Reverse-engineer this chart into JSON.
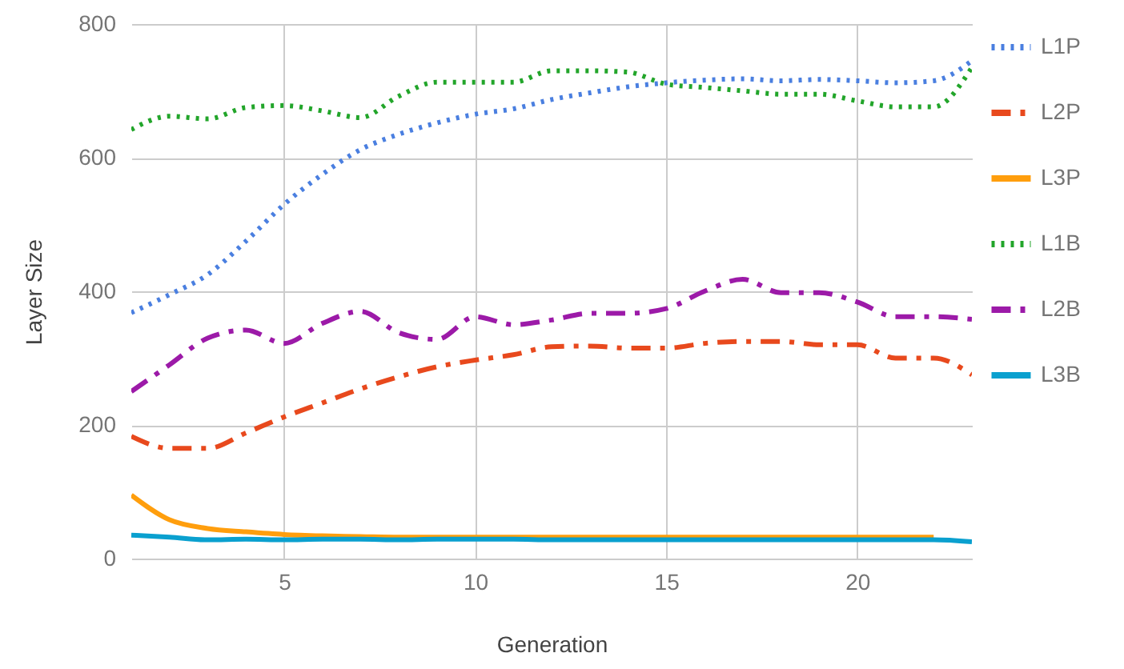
{
  "chart_data": {
    "type": "line",
    "xlabel": "Generation",
    "ylabel": "Layer Size",
    "x": [
      1,
      2,
      3,
      4,
      5,
      6,
      7,
      8,
      9,
      10,
      11,
      12,
      13,
      14,
      15,
      16,
      17,
      18,
      19,
      20,
      21,
      22,
      23
    ],
    "xlim": [
      1,
      23
    ],
    "xticks": [
      5,
      10,
      15,
      20
    ],
    "ylim": [
      0,
      800
    ],
    "yticks": [
      0,
      200,
      400,
      600,
      800
    ],
    "grid": true,
    "legend": "right",
    "series": [
      {
        "name": "L1P",
        "color": "#4a7fe0",
        "line_style": "dotted",
        "values": [
          368,
          395,
          425,
          475,
          530,
          575,
          612,
          635,
          652,
          665,
          673,
          687,
          697,
          706,
          712,
          716,
          718,
          715,
          717,
          715,
          712,
          715,
          745
        ]
      },
      {
        "name": "L2P",
        "color": "#e8491d",
        "line_style": "dashed",
        "values": [
          183,
          165,
          165,
          188,
          212,
          233,
          254,
          272,
          287,
          297,
          305,
          317,
          318,
          315,
          315,
          322,
          325,
          325,
          320,
          320,
          300,
          300,
          275
        ]
      },
      {
        "name": "L3P",
        "color": "#ff9e0d",
        "line_style": "solid",
        "values": [
          95,
          58,
          45,
          40,
          36,
          34,
          33,
          32,
          32,
          32,
          32,
          32,
          32,
          32,
          32,
          32,
          32,
          32,
          32,
          32,
          32,
          32,
          null
        ]
      },
      {
        "name": "L1B",
        "color": "#22a52a",
        "line_style": "dotted",
        "values": [
          642,
          662,
          658,
          675,
          678,
          670,
          660,
          692,
          713,
          713,
          713,
          730,
          730,
          728,
          710,
          705,
          700,
          695,
          695,
          685,
          676,
          676,
          735
        ]
      },
      {
        "name": "L2B",
        "color": "#9c1aa8",
        "line_style": "dashed",
        "values": [
          250,
          290,
          330,
          342,
          322,
          352,
          370,
          338,
          328,
          362,
          350,
          357,
          367,
          367,
          374,
          400,
          418,
          398,
          398,
          384,
          362,
          362,
          358
        ]
      },
      {
        "name": "L3B",
        "color": "#0aa0cf",
        "line_style": "solid",
        "values": [
          35,
          32,
          28,
          29,
          28,
          29,
          29,
          28,
          29,
          29,
          29,
          28,
          28,
          28,
          28,
          28,
          28,
          28,
          28,
          28,
          28,
          28,
          25
        ]
      }
    ]
  }
}
